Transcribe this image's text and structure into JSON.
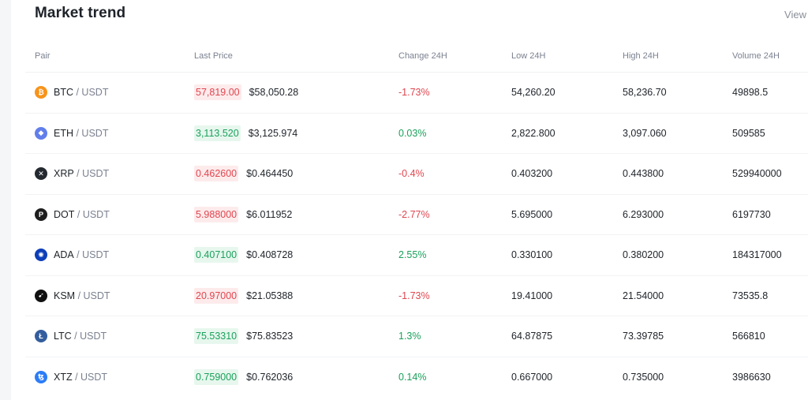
{
  "header": {
    "title": "Market trend",
    "view_label": "View"
  },
  "table": {
    "columns": [
      "Pair",
      "Last Price",
      "Change 24H",
      "Low 24H",
      "High 24H",
      "Volume 24H"
    ],
    "rows": [
      {
        "base": "BTC",
        "quote": "USDT",
        "icon": "bitcoin-icon",
        "icon_color": "#f7931a",
        "icon_glyph": "₿",
        "last_price": "57,819.00",
        "usd_price": "$58,050.28",
        "direction": "down",
        "change": "-1.73%",
        "low": "54,260.20",
        "high": "58,236.70",
        "volume": "49898.5"
      },
      {
        "base": "ETH",
        "quote": "USDT",
        "icon": "ethereum-icon",
        "icon_color": "#627eea",
        "icon_glyph": "◆",
        "last_price": "3,113.520",
        "usd_price": "$3,125.974",
        "direction": "up",
        "change": "0.03%",
        "low": "2,822.800",
        "high": "3,097.060",
        "volume": "509585"
      },
      {
        "base": "XRP",
        "quote": "USDT",
        "icon": "xrp-icon",
        "icon_color": "#23292f",
        "icon_glyph": "✕",
        "last_price": "0.462600",
        "usd_price": "$0.464450",
        "direction": "down",
        "change": "-0.4%",
        "low": "0.403200",
        "high": "0.443800",
        "volume": "529940000"
      },
      {
        "base": "DOT",
        "quote": "USDT",
        "icon": "polkadot-icon",
        "icon_color": "#1e1e1e",
        "icon_glyph": "P",
        "last_price": "5.988000",
        "usd_price": "$6.011952",
        "direction": "down",
        "change": "-2.77%",
        "low": "5.695000",
        "high": "6.293000",
        "volume": "6197730"
      },
      {
        "base": "ADA",
        "quote": "USDT",
        "icon": "cardano-icon",
        "icon_color": "#0d3fb8",
        "icon_glyph": "✺",
        "last_price": "0.407100",
        "usd_price": "$0.408728",
        "direction": "up",
        "change": "2.55%",
        "low": "0.330100",
        "high": "0.380200",
        "volume": "184317000"
      },
      {
        "base": "KSM",
        "quote": "USDT",
        "icon": "kusama-icon",
        "icon_color": "#111111",
        "icon_glyph": "➹",
        "last_price": "20.97000",
        "usd_price": "$21.05388",
        "direction": "down",
        "change": "-1.73%",
        "low": "19.41000",
        "high": "21.54000",
        "volume": "73535.8"
      },
      {
        "base": "LTC",
        "quote": "USDT",
        "icon": "litecoin-icon",
        "icon_color": "#345d9d",
        "icon_glyph": "Ł",
        "last_price": "75.53310",
        "usd_price": "$75.83523",
        "direction": "up",
        "change": "1.3%",
        "low": "64.87875",
        "high": "73.39785",
        "volume": "566810"
      },
      {
        "base": "XTZ",
        "quote": "USDT",
        "icon": "tezos-icon",
        "icon_color": "#2c7df7",
        "icon_glyph": "ꜩ",
        "last_price": "0.759000",
        "usd_price": "$0.762036",
        "direction": "up",
        "change": "0.14%",
        "low": "0.667000",
        "high": "0.735000",
        "volume": "3986630"
      }
    ]
  }
}
